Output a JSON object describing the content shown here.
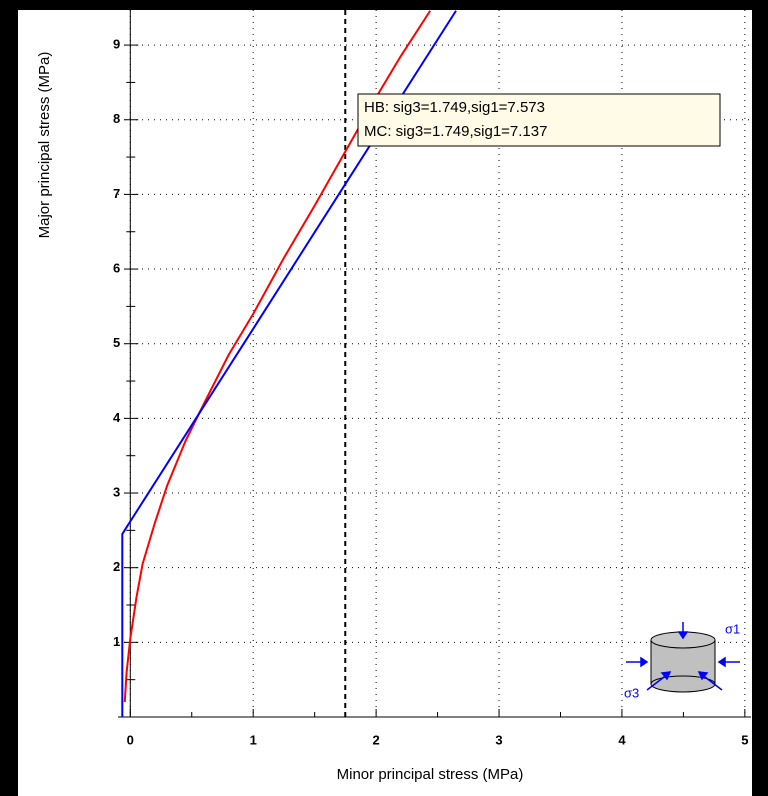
{
  "chart_data": {
    "type": "line",
    "xlabel": "Minor principal stress (MPa)",
    "ylabel": "Major principal stress (MPa)",
    "xlim": [
      -0.1,
      5.05
    ],
    "ylim": [
      0,
      9.47
    ],
    "xticks": [
      0,
      1,
      2,
      3,
      4,
      5
    ],
    "yticks": [
      1,
      2,
      3,
      4,
      5,
      6,
      7,
      8,
      9
    ],
    "grid": true,
    "series": [
      {
        "color": "#ff0000",
        "x": [
          -0.045,
          -0.03,
          0,
          0.05,
          0.1,
          0.2,
          0.3,
          0.45,
          0.6,
          0.8,
          1,
          1.25,
          1.5,
          1.749,
          2,
          2.2,
          2.44
        ],
        "values": [
          0.2,
          0.6,
          1.05,
          1.6,
          2.05,
          2.6,
          3.1,
          3.7,
          4.2,
          4.85,
          5.4,
          6.15,
          6.85,
          7.573,
          8.3,
          8.85,
          9.46
        ]
      },
      {
        "color": "#0000ff",
        "x": [
          -0.065,
          -0.065,
          0,
          1,
          1.749,
          2.65
        ],
        "values": [
          0,
          2.45,
          2.62,
          5.2,
          7.137,
          9.46
        ]
      }
    ],
    "vline": 1.749,
    "annotation": [
      "HB: sig3=1.749,sig1=7.573",
      "MC: sig3=1.749,sig1=7.137"
    ],
    "icon_labels": [
      "σ1",
      "σ3"
    ]
  }
}
